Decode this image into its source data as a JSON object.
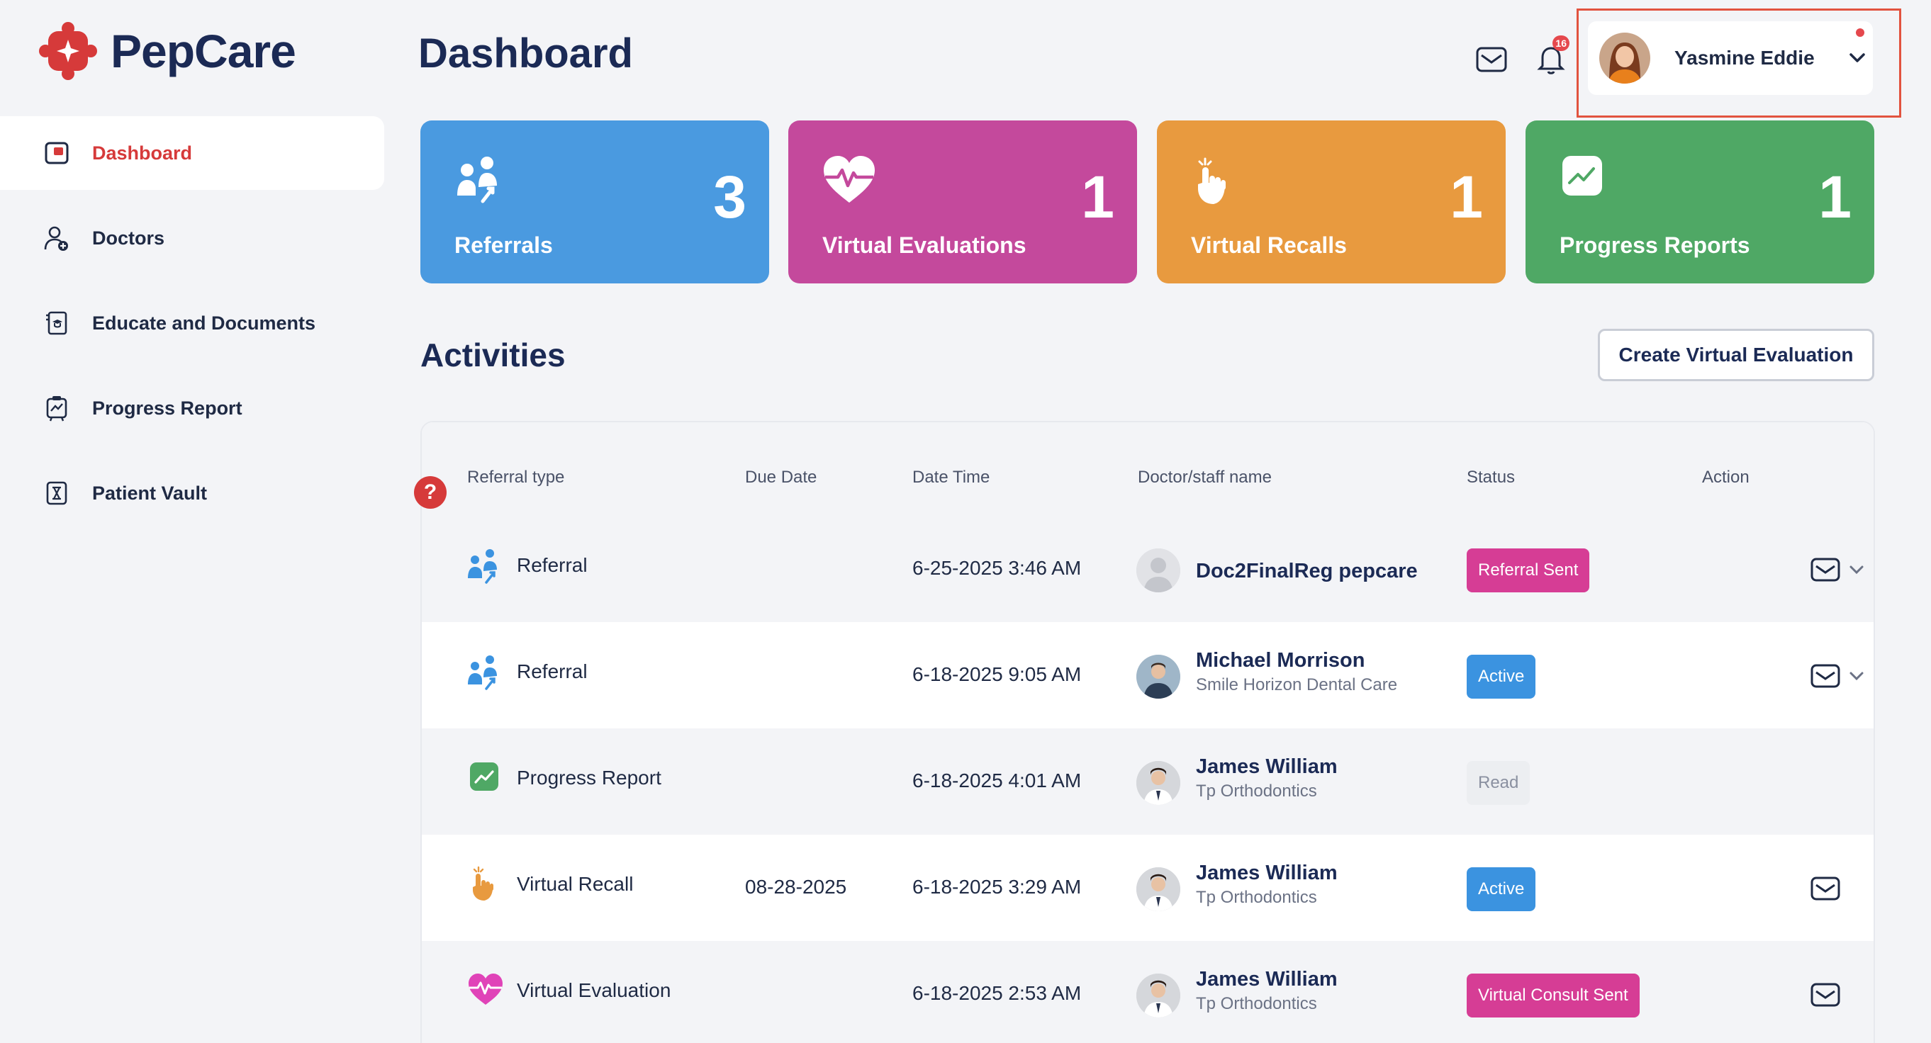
{
  "brand": {
    "name": "PepCare",
    "accent": "#d63a3a"
  },
  "sidebar": {
    "items": [
      {
        "label": "Dashboard",
        "icon": "dashboard-icon",
        "active": true
      },
      {
        "label": "Doctors",
        "icon": "doctor-add-icon"
      },
      {
        "label": "Educate and Documents",
        "icon": "document-icon"
      },
      {
        "label": "Progress Report",
        "icon": "clipboard-chart-icon"
      },
      {
        "label": "Patient Vault",
        "icon": "vault-icon"
      }
    ]
  },
  "header": {
    "title": "Dashboard",
    "notification_count": "16",
    "user": {
      "name": "Yasmine Eddie"
    }
  },
  "cards": [
    {
      "label": "Referrals",
      "value": "3",
      "color": "#4a9ae0",
      "icon": "referral-people-icon"
    },
    {
      "label": "Virtual Evaluations",
      "value": "1",
      "color": "#c4499c",
      "icon": "heart-pulse-icon"
    },
    {
      "label": "Virtual Recalls",
      "value": "1",
      "color": "#e89a3f",
      "icon": "hand-tap-icon"
    },
    {
      "label": "Progress Reports",
      "value": "1",
      "color": "#4fa865",
      "icon": "chart-square-icon"
    }
  ],
  "activities": {
    "title": "Activities",
    "create_label": "Create Virtual Evaluation",
    "columns": [
      "Referral type",
      "Due Date",
      "Date Time",
      "Doctor/staff name",
      "Status",
      "Action"
    ],
    "rows": [
      {
        "type": "Referral",
        "due": "",
        "datetime": "6-25-2025 3:46 AM",
        "doctor": "Doc2FinalReg pepcare",
        "org": "",
        "status": "Referral Sent",
        "status_color": "pink",
        "chevron": true
      },
      {
        "type": "Referral",
        "due": "",
        "datetime": "6-18-2025 9:05 AM",
        "doctor": "Michael Morrison",
        "org": "Smile Horizon Dental Care",
        "status": "Active",
        "status_color": "blue",
        "chevron": true
      },
      {
        "type": "Progress Report",
        "due": "",
        "datetime": "6-18-2025 4:01 AM",
        "doctor": "James William",
        "org": "Tp Orthodontics",
        "status": "Read",
        "status_color": "grey",
        "chevron": false
      },
      {
        "type": "Virtual Recall",
        "due": "08-28-2025",
        "datetime": "6-18-2025 3:29 AM",
        "doctor": "James William",
        "org": "Tp Orthodontics",
        "status": "Active",
        "status_color": "blue",
        "chevron": false
      },
      {
        "type": "Virtual Evaluation",
        "due": "",
        "datetime": "6-18-2025 2:53 AM",
        "doctor": "James William",
        "org": "Tp Orthodontics",
        "status": "Virtual Consult Sent",
        "status_color": "pink",
        "chevron": false
      }
    ]
  }
}
